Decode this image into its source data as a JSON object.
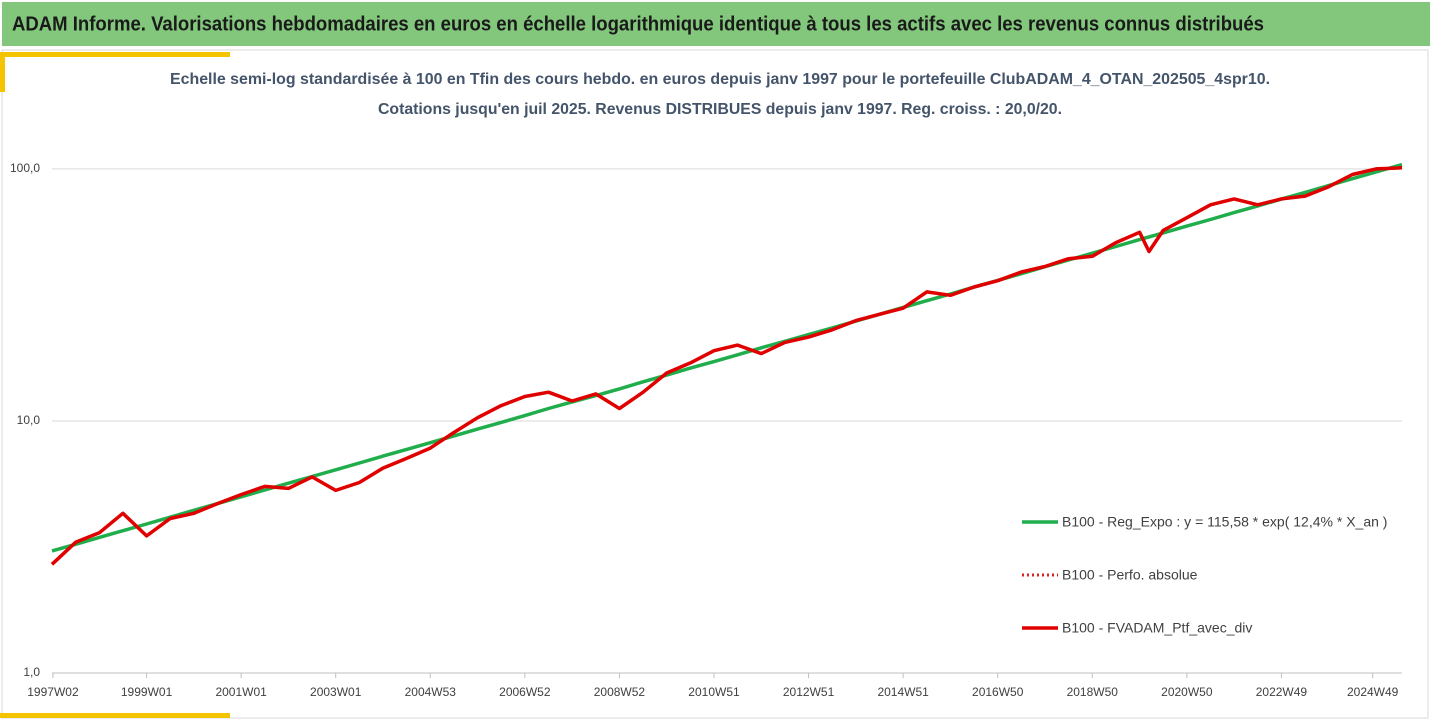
{
  "chart_data": {
    "type": "line",
    "title": "ADAM Informe. Valorisations hebdomadaires en euros en échelle logarithmique identique à tous les actifs avec les revenus connus distribués",
    "subtitle": [
      "Echelle semi-log standardisée  à 100 en Tfin des cours hebdo.  en euros depuis janv 1997 pour le portefeuille ClubADAM_4_OTAN_202505_4spr10.",
      "Cotations  jusqu'en juil 2025. Revenus DISTRIBUES depuis janv 1997. Reg. croiss. : 20,0/20."
    ],
    "log_scale": true,
    "grid": true,
    "legend_position": "right",
    "ylim": [
      1,
      200
    ],
    "yticks": [
      {
        "value": 1,
        "label": "1,0"
      },
      {
        "value": 10,
        "label": "10,0"
      },
      {
        "value": 100,
        "label": "100,0"
      }
    ],
    "xlim": [
      1997.0,
      2025.55
    ],
    "xticks": [
      {
        "value": 1997.02,
        "label": "1997W02"
      },
      {
        "value": 1999,
        "label": "1999W01"
      },
      {
        "value": 2001,
        "label": "2001W01"
      },
      {
        "value": 2003,
        "label": "2003W01"
      },
      {
        "value": 2005,
        "label": "2004W53"
      },
      {
        "value": 2007,
        "label": "2006W52"
      },
      {
        "value": 2009,
        "label": "2008W52"
      },
      {
        "value": 2011,
        "label": "2010W51"
      },
      {
        "value": 2013,
        "label": "2012W51"
      },
      {
        "value": 2015,
        "label": "2014W51"
      },
      {
        "value": 2017,
        "label": "2016W50"
      },
      {
        "value": 2019,
        "label": "2018W50"
      },
      {
        "value": 2021,
        "label": "2020W50"
      },
      {
        "value": 2023,
        "label": "2022W49"
      },
      {
        "value": 2024.93,
        "label": "2024W49"
      }
    ],
    "x": [
      1997.0,
      1997.5,
      1998.0,
      1998.5,
      1999.0,
      1999.5,
      2000.0,
      2000.5,
      2001.0,
      2001.5,
      2002.0,
      2002.5,
      2003.0,
      2003.5,
      2004.0,
      2004.5,
      2005.0,
      2005.5,
      2006.0,
      2006.5,
      2007.0,
      2007.5,
      2008.0,
      2008.5,
      2009.0,
      2009.5,
      2010.0,
      2010.5,
      2011.0,
      2011.5,
      2012.0,
      2012.5,
      2013.0,
      2013.5,
      2014.0,
      2014.5,
      2015.0,
      2015.5,
      2016.0,
      2016.5,
      2017.0,
      2017.5,
      2018.0,
      2018.5,
      2019.0,
      2019.5,
      2020.0,
      2020.2,
      2020.5,
      2021.0,
      2021.5,
      2022.0,
      2022.5,
      2023.0,
      2023.5,
      2024.0,
      2024.5,
      2025.0,
      2025.55
    ],
    "series": [
      {
        "name": "B100 - Reg_Expo : y = 115,58 * exp( 12,4% *  X_an )",
        "color": "#1fae4b",
        "style": "solid",
        "values": [
          3.05,
          3.24,
          3.45,
          3.67,
          3.9,
          4.15,
          4.42,
          4.7,
          5.0,
          5.32,
          5.66,
          6.02,
          6.4,
          6.81,
          7.25,
          7.71,
          8.2,
          8.72,
          9.28,
          9.87,
          10.5,
          11.2,
          11.9,
          12.6,
          13.4,
          14.3,
          15.2,
          16.2,
          17.2,
          18.3,
          19.5,
          20.7,
          22.0,
          23.4,
          24.9,
          26.5,
          28.2,
          30.0,
          31.9,
          34.0,
          36.1,
          38.4,
          40.9,
          43.5,
          46.3,
          49.2,
          52.4,
          53.7,
          55.7,
          59.3,
          63.0,
          67.1,
          71.3,
          75.9,
          80.7,
          85.9,
          91.4,
          97.2,
          104
        ]
      },
      {
        "name": "B100 - Perfo. absolue",
        "color": "#e02020",
        "style": "dotted",
        "values": [
          2.7,
          3.3,
          3.6,
          4.3,
          3.5,
          4.1,
          4.3,
          4.7,
          5.1,
          5.5,
          5.4,
          6.0,
          5.3,
          5.7,
          6.5,
          7.1,
          7.8,
          9.0,
          10.3,
          11.5,
          12.5,
          13.0,
          12.0,
          12.8,
          11.2,
          13.0,
          15.5,
          17.0,
          19.0,
          20.0,
          18.5,
          20.5,
          21.5,
          23.0,
          25.0,
          26.5,
          28.0,
          32.5,
          31.5,
          34.0,
          36.0,
          39.0,
          41.0,
          44.0,
          45.0,
          51.0,
          56.0,
          47.0,
          57.0,
          64.0,
          72.0,
          76.0,
          72.0,
          76.0,
          78.0,
          85.0,
          95.0,
          100.0,
          101.0
        ]
      },
      {
        "name": "B100 - FVADAM_Ptf_avec_div",
        "color": "#e00000",
        "style": "solid",
        "values": [
          2.7,
          3.3,
          3.6,
          4.3,
          3.5,
          4.1,
          4.3,
          4.7,
          5.1,
          5.5,
          5.4,
          6.0,
          5.3,
          5.7,
          6.5,
          7.1,
          7.8,
          9.0,
          10.3,
          11.5,
          12.5,
          13.0,
          12.0,
          12.8,
          11.2,
          13.0,
          15.5,
          17.0,
          19.0,
          20.0,
          18.5,
          20.5,
          21.5,
          23.0,
          25.0,
          26.5,
          28.0,
          32.5,
          31.5,
          34.0,
          36.0,
          39.0,
          41.0,
          44.0,
          45.0,
          51.0,
          56.0,
          47.0,
          57.0,
          64.0,
          72.0,
          76.0,
          72.0,
          76.0,
          78.0,
          85.0,
          95.0,
          100.0,
          101.0
        ]
      }
    ]
  }
}
